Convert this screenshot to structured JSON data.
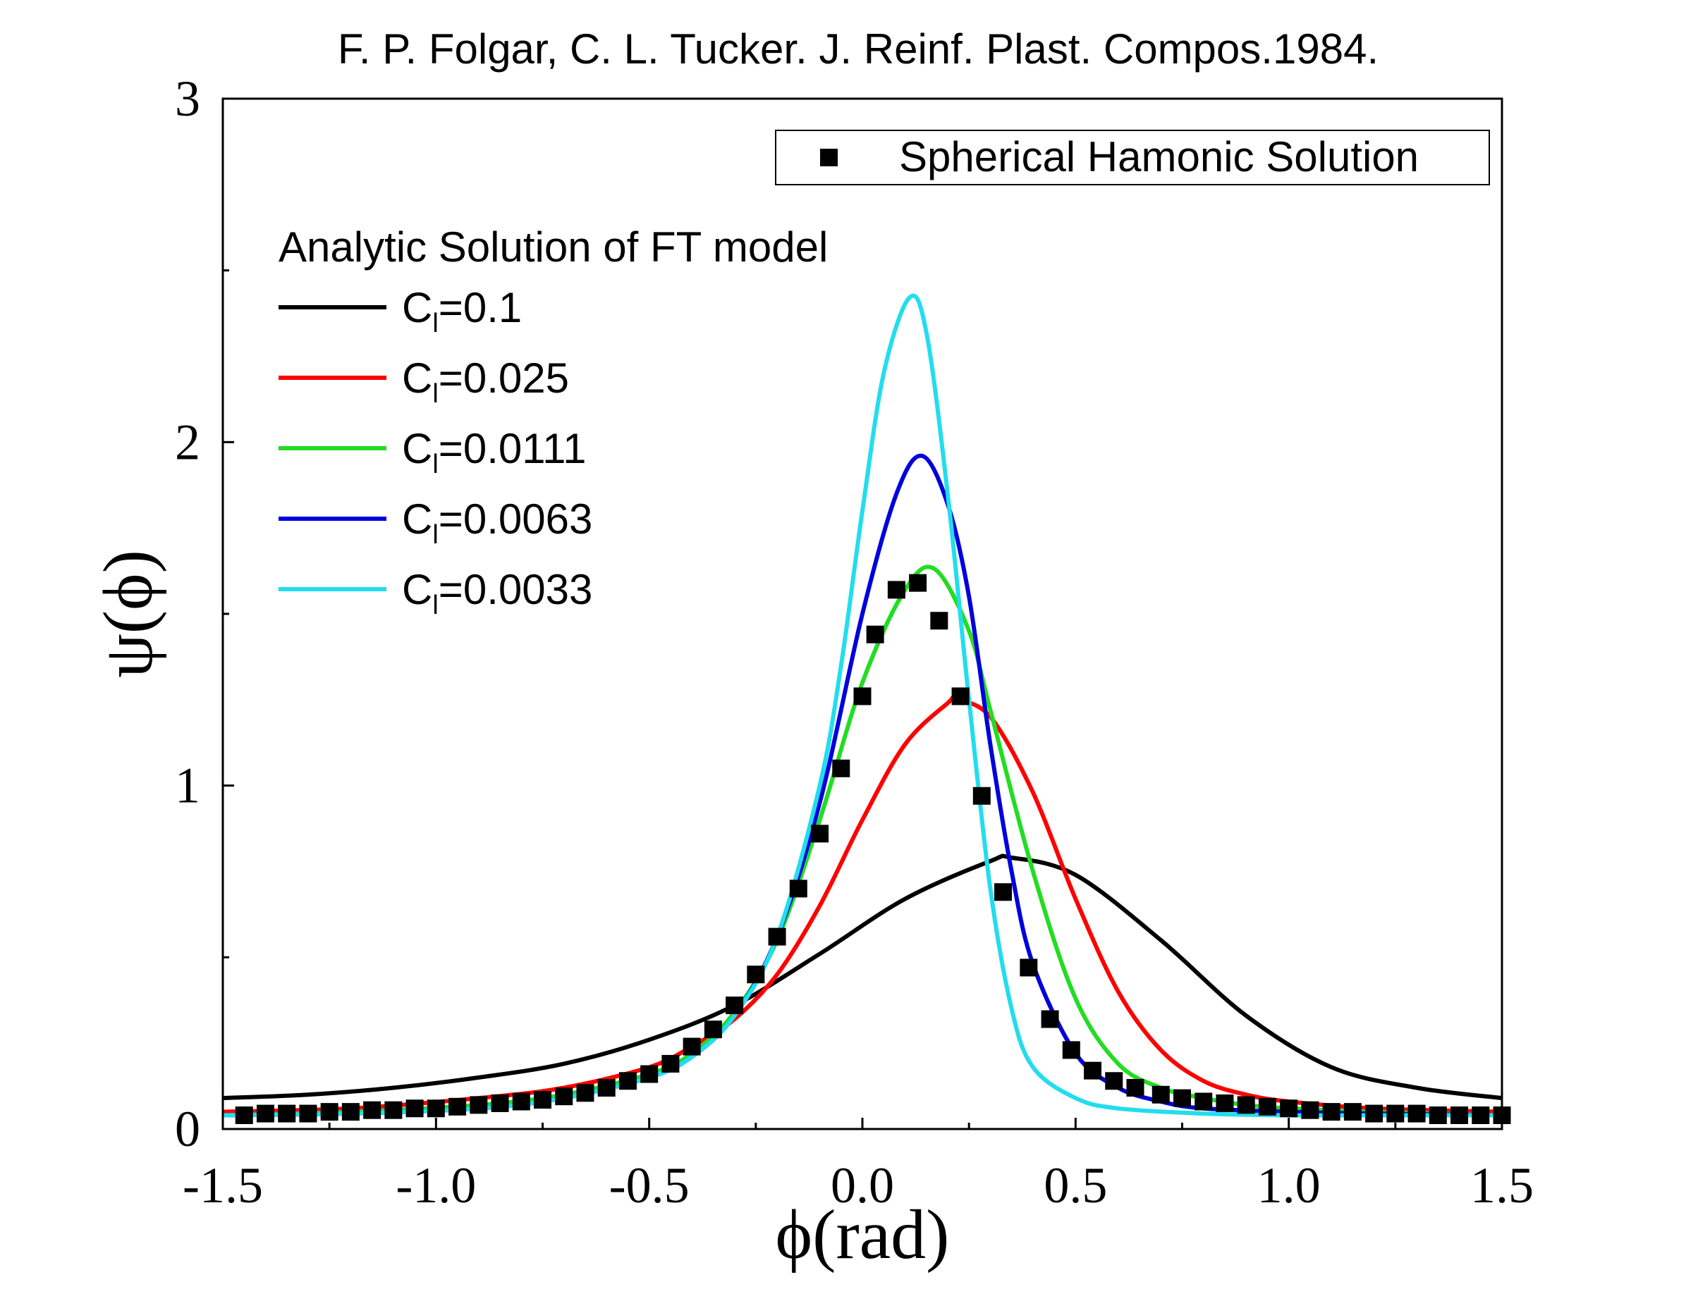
{
  "chart_data": {
    "type": "line",
    "title": "F. P. Folgar, C. L. Tucker. J. Reinf. Plast. Compos.1984.",
    "xlabel": "ϕ(rad)",
    "ylabel": "ψ(ϕ)",
    "xlim": [
      -1.5,
      1.5
    ],
    "ylim": [
      0,
      3
    ],
    "x_ticks": [
      -1.5,
      -1.0,
      -0.5,
      0.0,
      0.5,
      1.0,
      1.5
    ],
    "x_tick_labels": [
      "-1.5",
      "-1.0",
      "-0.5",
      "0.0",
      "0.5",
      "1.0",
      "1.5"
    ],
    "y_ticks": [
      0,
      1,
      2,
      3
    ],
    "y_tick_labels": [
      "0",
      "1",
      "2",
      "3"
    ],
    "grid": false,
    "legend_placement": "top-right",
    "lines_legend_title": "Analytic Solution of FT model",
    "series": [
      {
        "name": "C_l=0.1",
        "label_main": "C",
        "label_sub": "l",
        "label_rest": "=0.1",
        "color": "#000000",
        "x": [
          -1.5,
          -1.3,
          -1.1,
          -0.9,
          -0.7,
          -0.5,
          -0.3,
          -0.1,
          0.1,
          0.3,
          0.35,
          0.5,
          0.7,
          0.9,
          1.1,
          1.3,
          1.5
        ],
        "y": [
          0.09,
          0.1,
          0.12,
          0.15,
          0.19,
          0.26,
          0.36,
          0.51,
          0.67,
          0.78,
          0.79,
          0.74,
          0.55,
          0.33,
          0.18,
          0.12,
          0.09
        ]
      },
      {
        "name": "C_l=0.025",
        "label_main": "C",
        "label_sub": "l",
        "label_rest": "=0.025",
        "color": "#ff0000",
        "x": [
          -1.5,
          -1.2,
          -0.9,
          -0.7,
          -0.5,
          -0.4,
          -0.3,
          -0.2,
          -0.1,
          0.0,
          0.1,
          0.2,
          0.22,
          0.3,
          0.4,
          0.5,
          0.6,
          0.7,
          0.8,
          0.9,
          1.0,
          1.2,
          1.5
        ],
        "y": [
          0.05,
          0.06,
          0.09,
          0.12,
          0.18,
          0.24,
          0.32,
          0.45,
          0.65,
          0.9,
          1.12,
          1.24,
          1.25,
          1.2,
          0.98,
          0.67,
          0.4,
          0.23,
          0.14,
          0.1,
          0.08,
          0.06,
          0.05
        ]
      },
      {
        "name": "C_l=0.0111",
        "label_main": "C",
        "label_sub": "l",
        "label_rest": "=0.0111",
        "color": "#22dd22",
        "x": [
          -1.5,
          -1.2,
          -0.9,
          -0.7,
          -0.5,
          -0.4,
          -0.3,
          -0.2,
          -0.1,
          0.0,
          0.1,
          0.17,
          0.25,
          0.3,
          0.4,
          0.5,
          0.6,
          0.7,
          0.8,
          0.9,
          1.0,
          1.2,
          1.5
        ],
        "y": [
          0.04,
          0.05,
          0.07,
          0.1,
          0.16,
          0.22,
          0.34,
          0.55,
          0.9,
          1.3,
          1.57,
          1.63,
          1.45,
          1.22,
          0.75,
          0.38,
          0.19,
          0.12,
          0.09,
          0.07,
          0.06,
          0.05,
          0.04
        ]
      },
      {
        "name": "C_l=0.0063",
        "label_main": "C",
        "label_sub": "l",
        "label_rest": "=0.0063",
        "color": "#0000dd",
        "x": [
          -1.5,
          -1.2,
          -0.9,
          -0.7,
          -0.5,
          -0.4,
          -0.3,
          -0.2,
          -0.1,
          0.0,
          0.08,
          0.14,
          0.2,
          0.25,
          0.3,
          0.35,
          0.4,
          0.5,
          0.6,
          0.7,
          0.8,
          1.0,
          1.2,
          1.5
        ],
        "y": [
          0.04,
          0.045,
          0.06,
          0.09,
          0.15,
          0.21,
          0.33,
          0.56,
          0.95,
          1.5,
          1.85,
          1.96,
          1.82,
          1.55,
          1.12,
          0.75,
          0.48,
          0.22,
          0.12,
          0.08,
          0.06,
          0.05,
          0.045,
          0.04
        ]
      },
      {
        "name": "C_l=0.0033",
        "label_main": "C",
        "label_sub": "l",
        "label_rest": "=0.0033",
        "color": "#22ddee",
        "x": [
          -1.5,
          -1.2,
          -0.9,
          -0.7,
          -0.5,
          -0.4,
          -0.3,
          -0.2,
          -0.1,
          -0.05,
          0.0,
          0.05,
          0.11,
          0.15,
          0.2,
          0.25,
          0.3,
          0.35,
          0.4,
          0.5,
          0.6,
          0.8,
          1.0,
          1.2,
          1.5
        ],
        "y": [
          0.04,
          0.045,
          0.06,
          0.09,
          0.15,
          0.21,
          0.33,
          0.56,
          1.0,
          1.35,
          1.8,
          2.2,
          2.42,
          2.32,
          1.85,
          1.25,
          0.7,
          0.35,
          0.18,
          0.09,
          0.06,
          0.045,
          0.04,
          0.04,
          0.04
        ]
      },
      {
        "name": "Spherical Hamonic Solution",
        "color": "#000000",
        "marker": "square",
        "x": [
          -1.45,
          -1.4,
          -1.35,
          -1.3,
          -1.25,
          -1.2,
          -1.15,
          -1.1,
          -1.05,
          -1.0,
          -0.95,
          -0.9,
          -0.85,
          -0.8,
          -0.75,
          -0.7,
          -0.65,
          -0.6,
          -0.55,
          -0.5,
          -0.45,
          -0.4,
          -0.35,
          -0.3,
          -0.25,
          -0.2,
          -0.15,
          -0.1,
          -0.05,
          0.0,
          0.03,
          0.08,
          0.13,
          0.18,
          0.23,
          0.28,
          0.33,
          0.39,
          0.44,
          0.49,
          0.54,
          0.59,
          0.64,
          0.7,
          0.75,
          0.8,
          0.85,
          0.9,
          0.95,
          1.0,
          1.05,
          1.1,
          1.15,
          1.2,
          1.25,
          1.3,
          1.35,
          1.4,
          1.45,
          1.5
        ],
        "y": [
          0.04,
          0.045,
          0.045,
          0.045,
          0.05,
          0.05,
          0.055,
          0.055,
          0.06,
          0.06,
          0.065,
          0.07,
          0.075,
          0.08,
          0.085,
          0.095,
          0.105,
          0.12,
          0.14,
          0.16,
          0.19,
          0.24,
          0.29,
          0.36,
          0.45,
          0.56,
          0.7,
          0.86,
          1.05,
          1.26,
          1.44,
          1.57,
          1.59,
          1.48,
          1.26,
          0.97,
          0.69,
          0.47,
          0.32,
          0.23,
          0.17,
          0.14,
          0.12,
          0.1,
          0.09,
          0.08,
          0.075,
          0.07,
          0.065,
          0.06,
          0.055,
          0.05,
          0.05,
          0.045,
          0.045,
          0.045,
          0.04,
          0.04,
          0.04,
          0.04
        ]
      }
    ]
  }
}
